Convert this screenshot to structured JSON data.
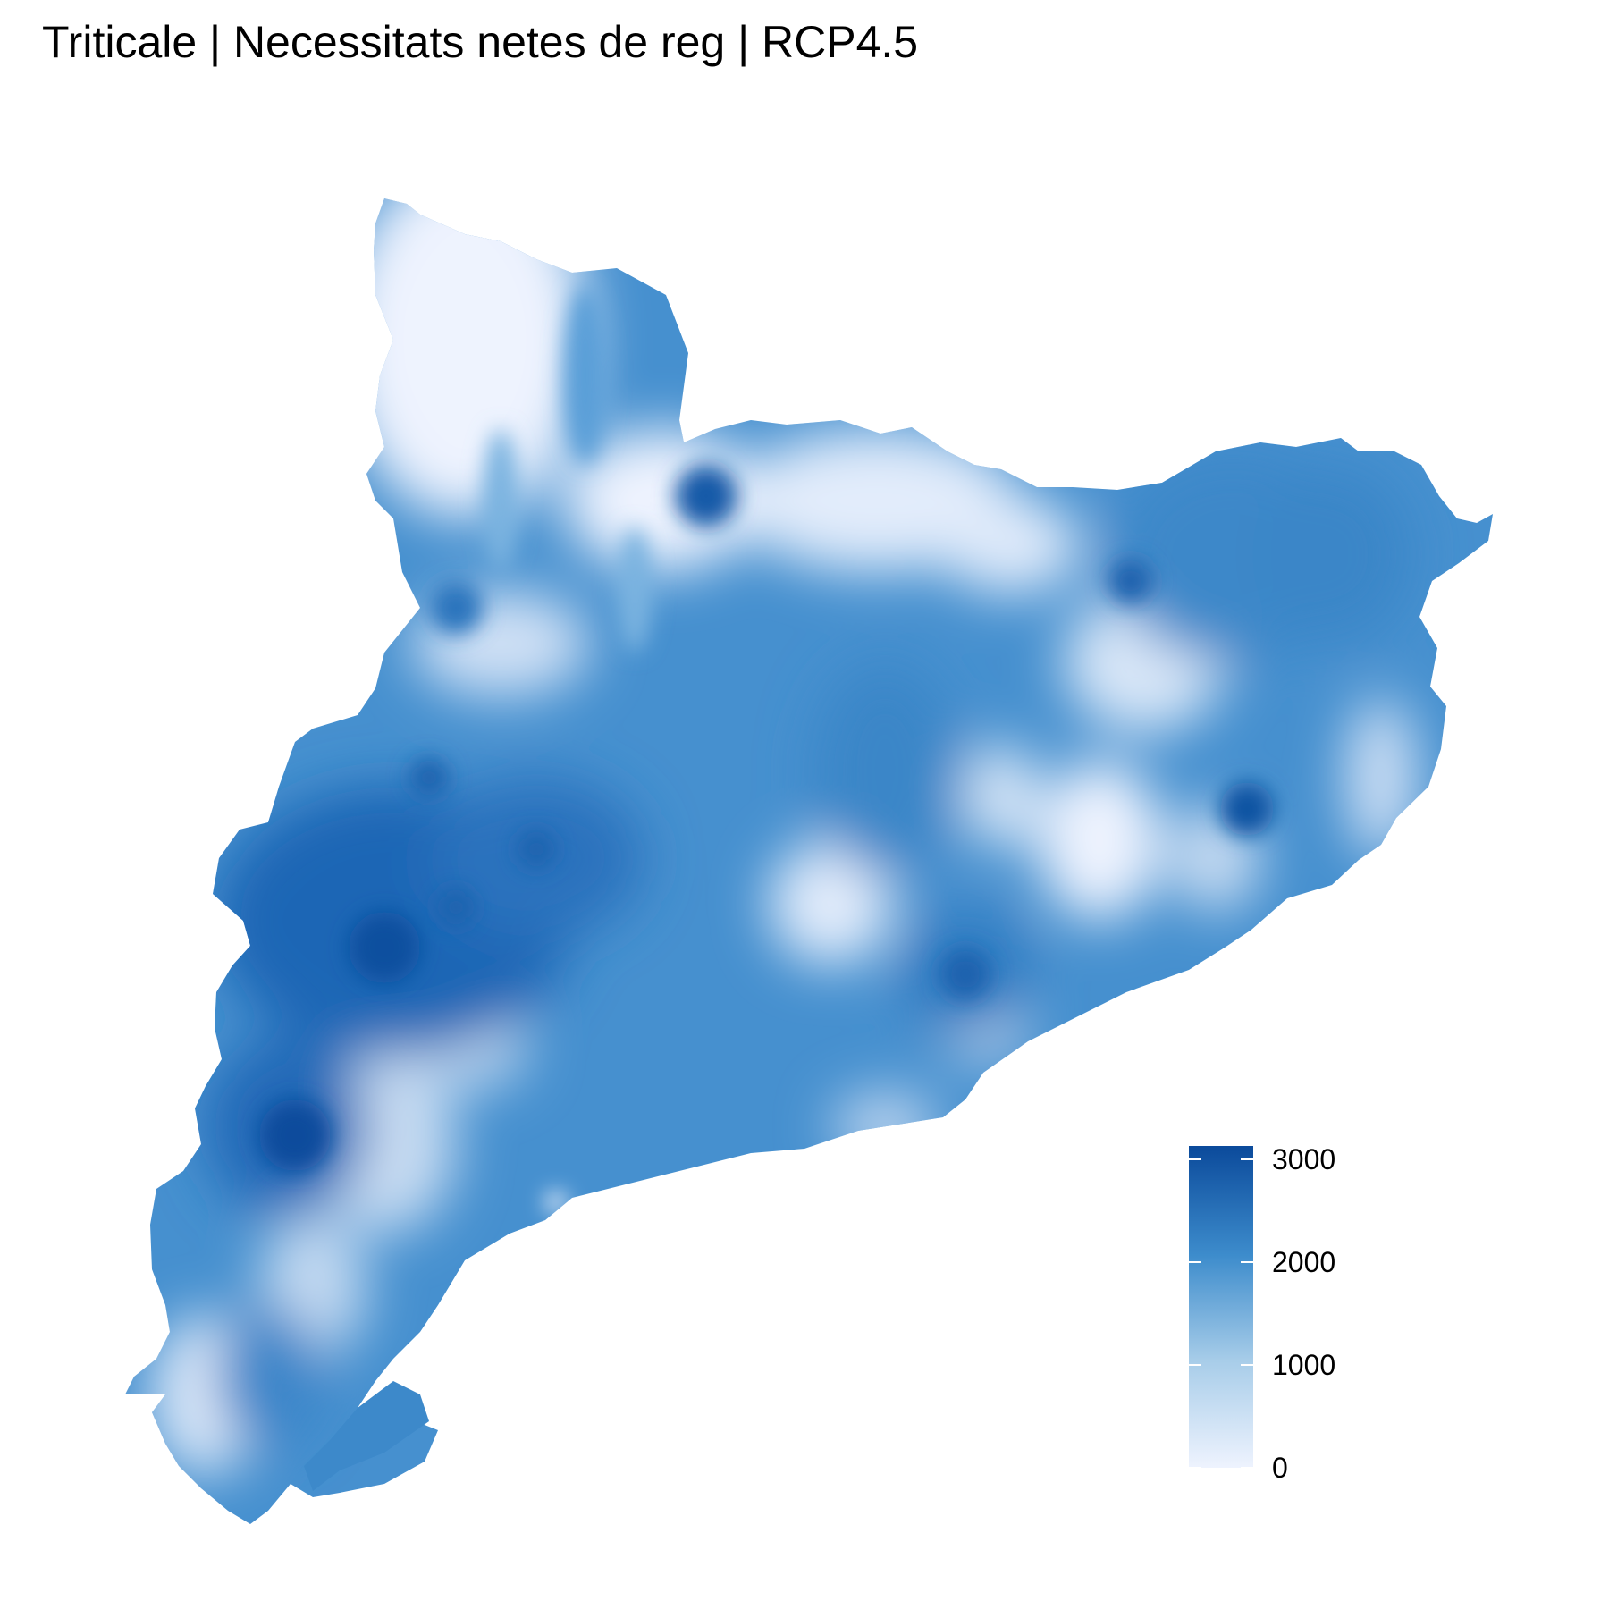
{
  "title": "Triticale | Necessitats netes de reg | RCP4.5",
  "colors": {
    "low": "#eef3fe",
    "mid": "#4a97d4",
    "high": "#0b4a9b",
    "background": "#ffffff"
  },
  "legend": {
    "min": 0,
    "max": 3000,
    "ticks": [
      "3000",
      "2000",
      "1000",
      "0"
    ]
  }
}
